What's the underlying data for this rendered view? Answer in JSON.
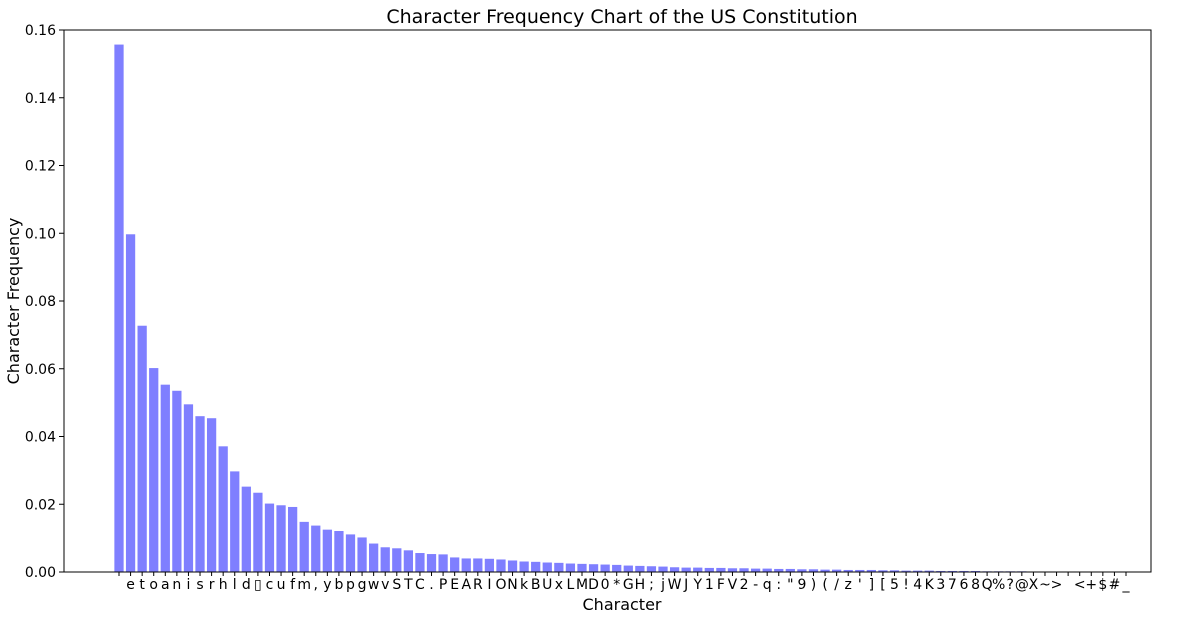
{
  "colors": {
    "bar": "#7f7fff",
    "axis": "#000000",
    "background": "#ffffff"
  },
  "chart_data": {
    "type": "bar",
    "title": "Character Frequency Chart of the US Constitution",
    "xlabel": "Character",
    "ylabel": "Character Frequency",
    "ylim": [
      0,
      0.16
    ],
    "yticks": [
      "0.00",
      "0.02",
      "0.04",
      "0.06",
      "0.08",
      "0.10",
      "0.12",
      "0.14",
      "0.16"
    ],
    "grid": false,
    "legend": "none",
    "categories": [
      " ",
      "e",
      "t",
      "o",
      "a",
      "n",
      "i",
      "s",
      "r",
      "h",
      "l",
      "d",
      "▯",
      "c",
      "u",
      "f",
      "m",
      ",",
      "y",
      "b",
      "p",
      "g",
      "w",
      "v",
      "S",
      "T",
      "C",
      ".",
      "P",
      "E",
      "A",
      "R",
      "I",
      "O",
      "N",
      "k",
      "B",
      "U",
      "x",
      "L",
      "M",
      "D",
      "0",
      "*",
      "G",
      "H",
      ";",
      "j",
      "W",
      "J",
      "Y",
      "1",
      "F",
      "V",
      "2",
      "-",
      "q",
      ":",
      "\"",
      "9",
      ")",
      "(",
      "/",
      "z",
      "'",
      "]",
      "[",
      "5",
      "!",
      "4",
      "K",
      "3",
      "7",
      "6",
      "8",
      "Q",
      "%",
      "?",
      "@",
      "X",
      "~",
      ">",
      "",
      "<",
      "+",
      "$",
      "#",
      "_"
    ],
    "values": [
      0.1557,
      0.0997,
      0.0727,
      0.0602,
      0.0553,
      0.0535,
      0.0495,
      0.046,
      0.0454,
      0.0371,
      0.0297,
      0.0252,
      0.0234,
      0.0202,
      0.0197,
      0.0192,
      0.0148,
      0.0137,
      0.0125,
      0.0121,
      0.0111,
      0.0102,
      0.0084,
      0.0073,
      0.007,
      0.0064,
      0.0056,
      0.0053,
      0.0052,
      0.0043,
      0.004,
      0.004,
      0.0039,
      0.0037,
      0.0034,
      0.0031,
      0.003,
      0.0028,
      0.0027,
      0.0025,
      0.0024,
      0.0023,
      0.0022,
      0.0021,
      0.0019,
      0.0018,
      0.0017,
      0.0016,
      0.0014,
      0.0013,
      0.0013,
      0.0012,
      0.0012,
      0.0011,
      0.0011,
      0.001,
      0.001,
      0.0009,
      0.0009,
      0.0008,
      0.0008,
      0.0007,
      0.0007,
      0.0006,
      0.0006,
      0.0006,
      0.0005,
      0.0005,
      0.0004,
      0.0004,
      0.0004,
      0.0003,
      0.0003,
      0.0003,
      0.0003,
      0.0002,
      0.0002,
      0.0002,
      0.0002,
      0.0001,
      0.0001,
      0.0001,
      0.0001,
      0.0001,
      0.0001,
      5e-05,
      5e-05,
      5e-05
    ]
  }
}
